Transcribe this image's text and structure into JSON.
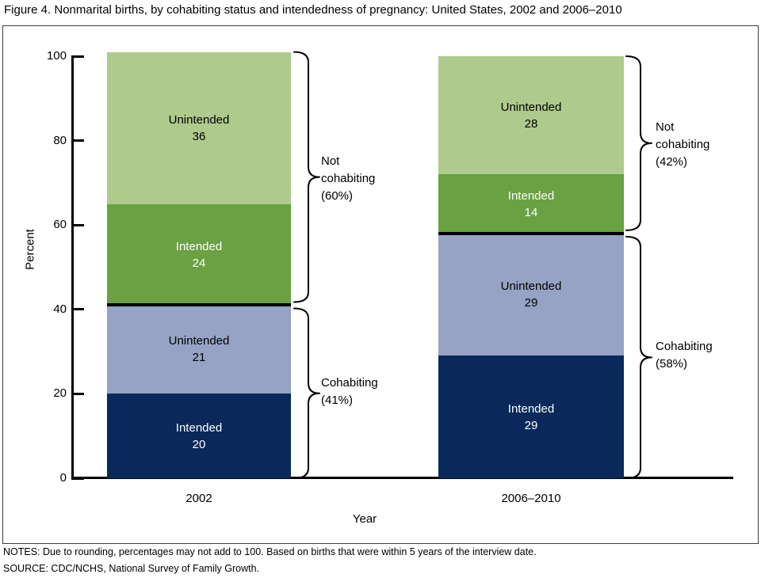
{
  "title": "Figure 4. Nonmarital births, by cohabiting status and intendedness of pregnancy: United States, 2002 and 2006–2010",
  "notes": "NOTES: Due to rounding, percentages may not add to 100. Based on births that were within 5 years of the interview date.",
  "source": "SOURCE: CDC/NCHS, National Survey of Family Growth.",
  "colors": {
    "cohabiting_intended": "#08295a",
    "cohabiting_unintended": "#96a3c5",
    "not_cohabiting_intended": "#69a143",
    "not_cohabiting_unintended": "#aeca8c",
    "divider": "#000000",
    "axis": "#000000"
  },
  "chart_data": {
    "type": "bar",
    "stacked": true,
    "xlabel": "Year",
    "ylabel": "Percent",
    "ylim": [
      0,
      100
    ],
    "y_ticks": [
      0,
      20,
      40,
      60,
      80,
      100
    ],
    "grid": false,
    "legend": "none (labels inside segments, group braces at right of each bar)",
    "categories": [
      "2002",
      "2006–2010"
    ],
    "series": [
      {
        "name": "Cohabiting – Intended",
        "values": [
          20,
          29
        ]
      },
      {
        "name": "Cohabiting – Unintended",
        "values": [
          21,
          29
        ]
      },
      {
        "name": "Not cohabiting – Intended",
        "values": [
          24,
          14
        ]
      },
      {
        "name": "Not cohabiting – Unintended",
        "values": [
          36,
          28
        ]
      }
    ],
    "divider_color": "#000000",
    "bars": [
      {
        "category": "2002",
        "segments": [
          {
            "group": "Cohabiting",
            "label": "Intended",
            "value": 20,
            "color": "#08295a",
            "text_color": "#ffffff"
          },
          {
            "group": "Cohabiting",
            "label": "Unintended",
            "value": 21,
            "color": "#96a3c5",
            "text_color": "#000000"
          },
          {
            "group": "Not cohabiting",
            "label": "Intended",
            "value": 24,
            "color": "#69a143",
            "text_color": "#ffffff"
          },
          {
            "group": "Not cohabiting",
            "label": "Unintended",
            "value": 36,
            "color": "#aeca8c",
            "text_color": "#000000"
          }
        ],
        "braces": [
          {
            "group": "Cohabiting",
            "percent": "41%",
            "lines": [
              "Cohabiting",
              "(41%)"
            ]
          },
          {
            "group": "Not cohabiting",
            "percent": "60%",
            "lines": [
              "Not",
              "cohabiting",
              "(60%)"
            ]
          }
        ]
      },
      {
        "category": "2006–2010",
        "segments": [
          {
            "group": "Cohabiting",
            "label": "Intended",
            "value": 29,
            "color": "#08295a",
            "text_color": "#ffffff"
          },
          {
            "group": "Cohabiting",
            "label": "Unintended",
            "value": 29,
            "color": "#96a3c5",
            "text_color": "#000000"
          },
          {
            "group": "Not cohabiting",
            "label": "Intended",
            "value": 14,
            "color": "#69a143",
            "text_color": "#ffffff"
          },
          {
            "group": "Not cohabiting",
            "label": "Unintended",
            "value": 28,
            "color": "#aeca8c",
            "text_color": "#000000"
          }
        ],
        "braces": [
          {
            "group": "Cohabiting",
            "percent": "58%",
            "lines": [
              "Cohabiting",
              "(58%)"
            ]
          },
          {
            "group": "Not cohabiting",
            "percent": "42%",
            "lines": [
              "Not",
              "cohabiting",
              "(42%)"
            ]
          }
        ]
      }
    ]
  }
}
